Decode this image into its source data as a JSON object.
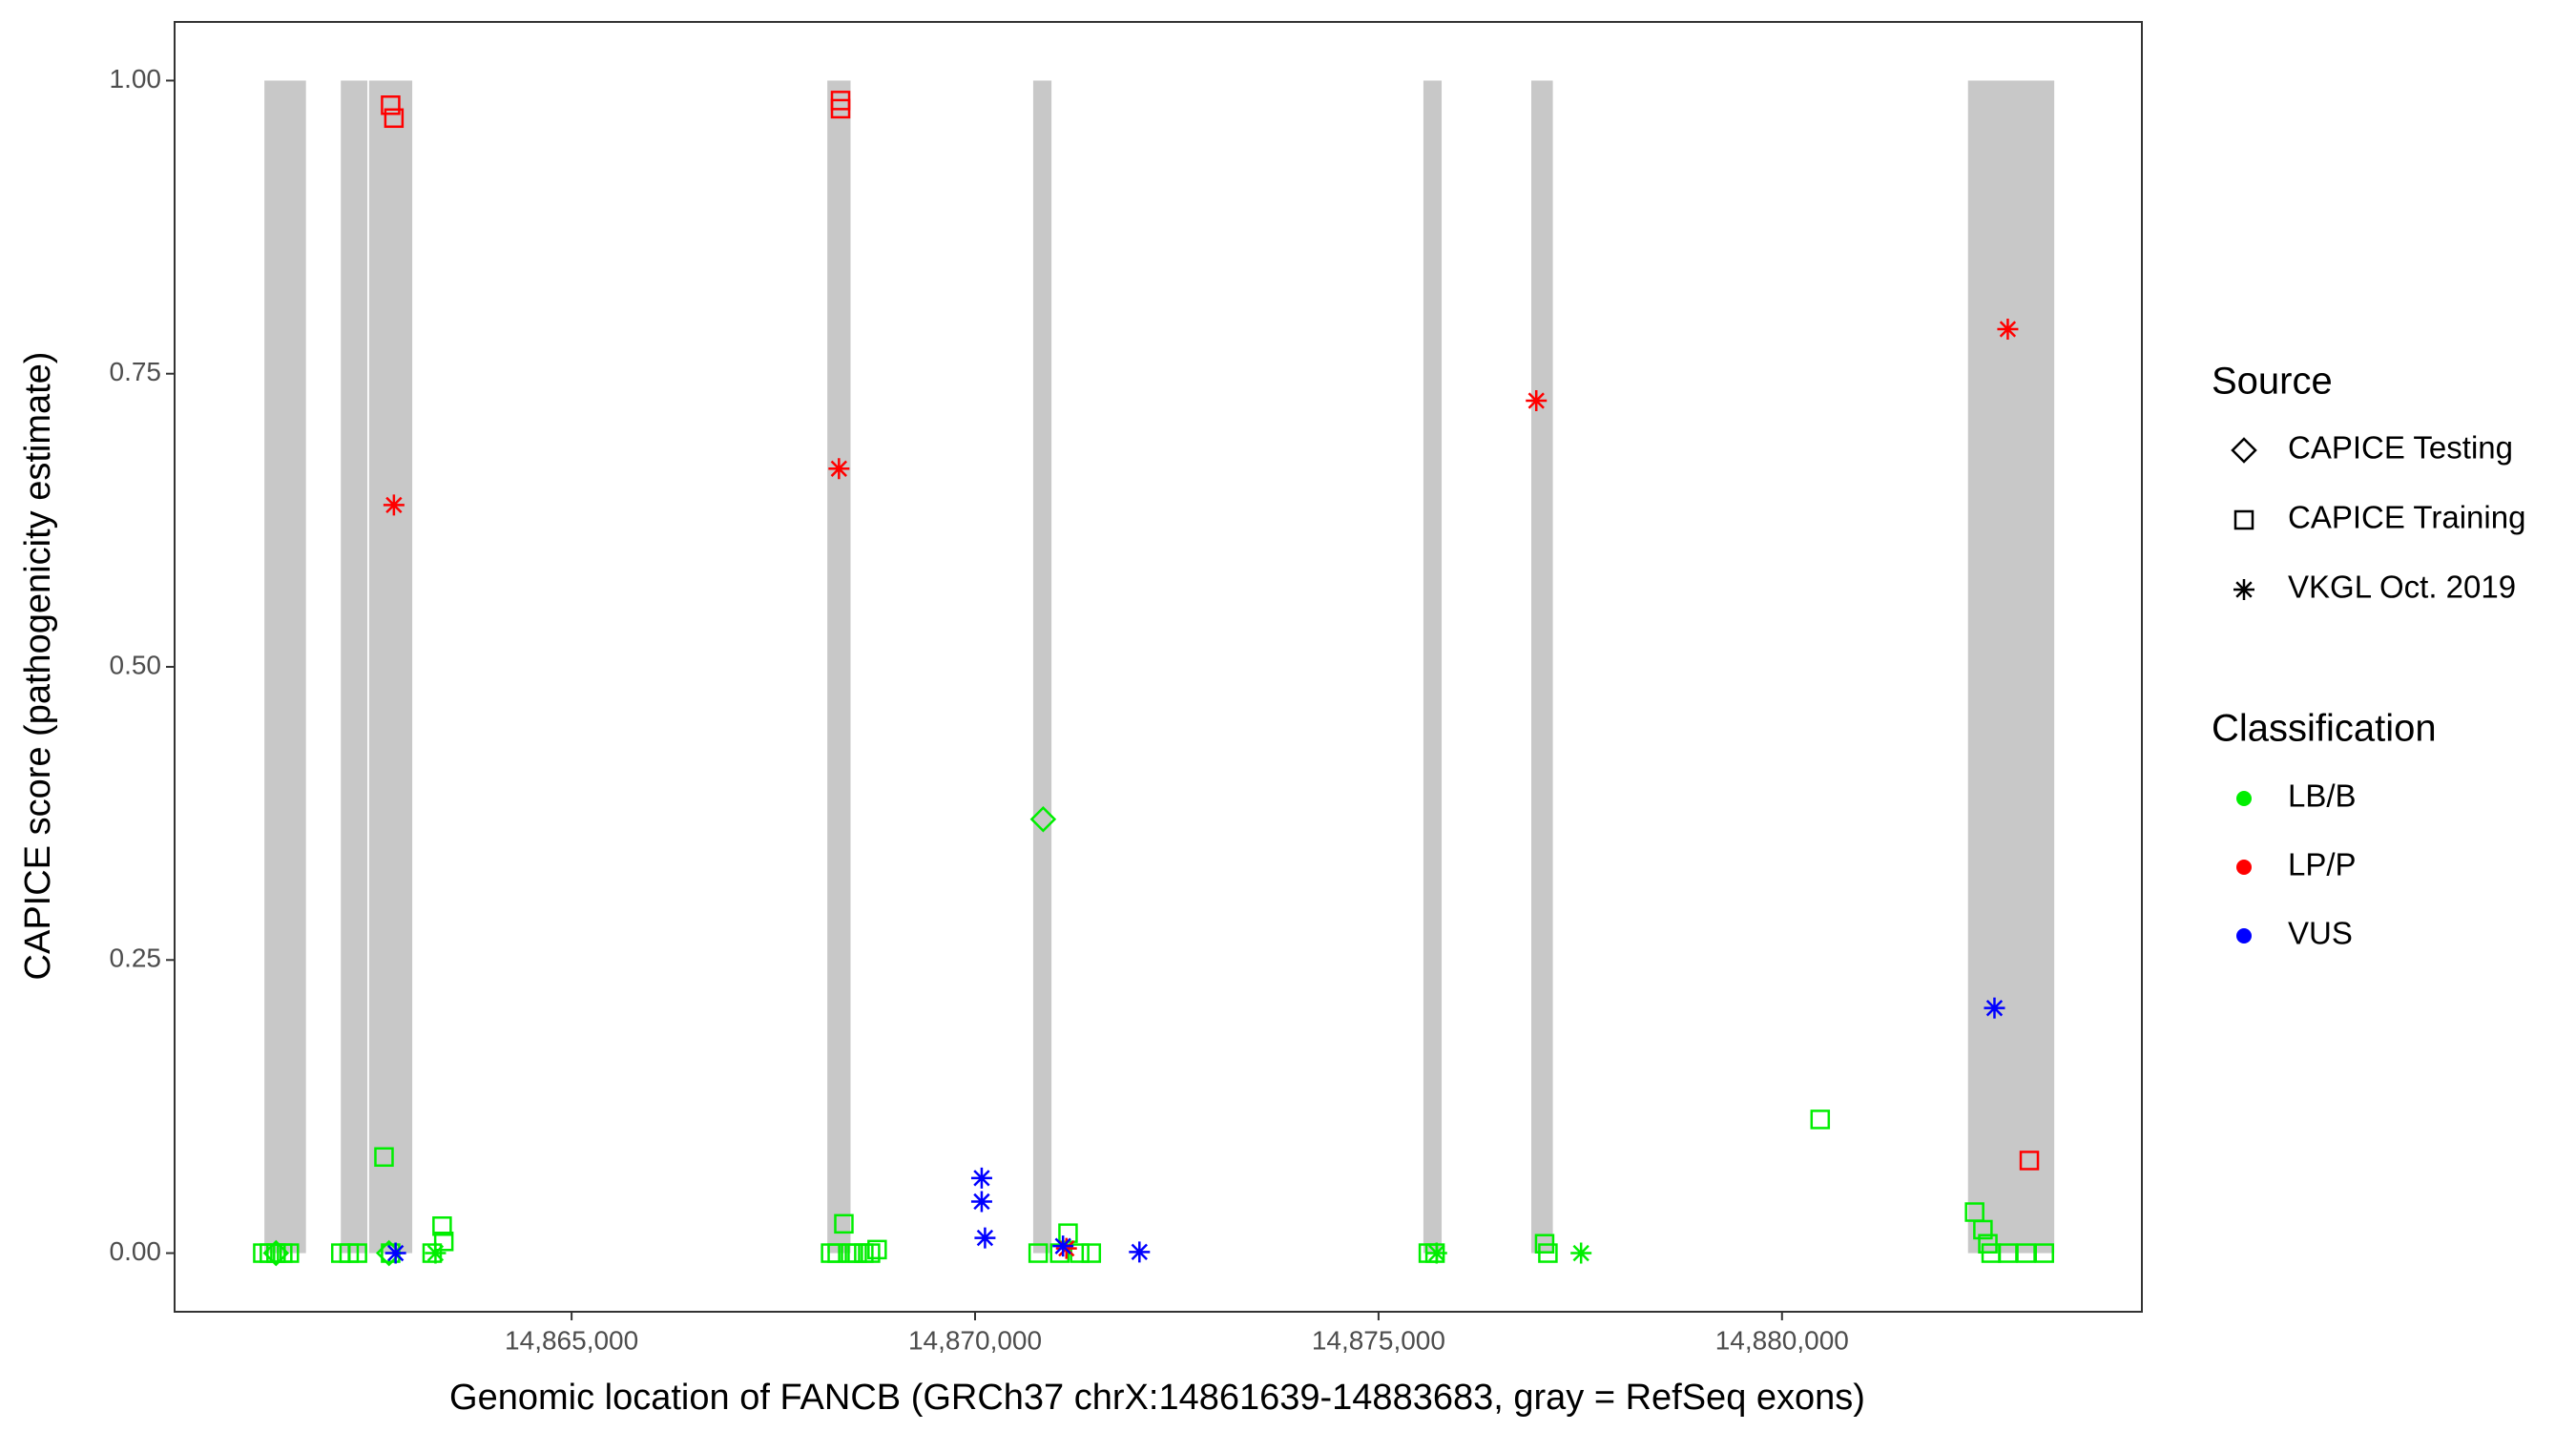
{
  "chart_data": {
    "type": "scatter",
    "xlabel": "Genomic location of FANCB (GRCh37 chrX:14861639-14883683, gray = RefSeq exons)",
    "ylabel": "CAPICE score (pathogenicity estimate)",
    "xlim": [
      14860080,
      14884460
    ],
    "ylim": [
      -0.05,
      1.05
    ],
    "xticks": [
      {
        "value": 14865000,
        "label": "14,865,000"
      },
      {
        "value": 14870000,
        "label": "14,870,000"
      },
      {
        "value": 14875000,
        "label": "14,875,000"
      },
      {
        "value": 14880000,
        "label": "14,880,000"
      }
    ],
    "yticks": [
      {
        "value": 0,
        "label": "0.00"
      },
      {
        "value": 0.25,
        "label": "0.25"
      },
      {
        "value": 0.5,
        "label": "0.50"
      },
      {
        "value": 0.75,
        "label": "0.75"
      },
      {
        "value": 1,
        "label": "1.00"
      }
    ],
    "exon_color": "#c8c8c8",
    "exon_y_range": [
      0,
      1
    ],
    "exons": [
      [
        14861193,
        14861708
      ],
      [
        14862140,
        14862469
      ],
      [
        14862490,
        14863025
      ],
      [
        14868169,
        14868457
      ],
      [
        14870720,
        14870947
      ],
      [
        14875556,
        14875782
      ],
      [
        14876893,
        14877160
      ],
      [
        14882305,
        14883374
      ]
    ],
    "legend_source": {
      "title": "Source",
      "items": [
        {
          "name": "CAPICE Testing",
          "shape": "diamond"
        },
        {
          "name": "CAPICE Training",
          "shape": "square"
        },
        {
          "name": "VKGL Oct. 2019",
          "shape": "asterisk"
        }
      ]
    },
    "legend_classification": {
      "title": "Classification",
      "items": [
        {
          "name": "LB/B",
          "color": "#00ee00"
        },
        {
          "name": "LP/P",
          "color": "#ff0000"
        },
        {
          "name": "VUS",
          "color": "#0000ff"
        }
      ]
    },
    "series": [
      {
        "source": "CAPICE Training",
        "classification": "LB/B",
        "x": [
          14861173,
          14861255,
          14861337,
          14861420,
          14861502,
          14862140,
          14862243,
          14862346,
          14862675,
          14862757,
          14863395,
          14863416,
          14863272,
          14868210,
          14868292,
          14868374,
          14868457,
          14868539,
          14868621,
          14868704,
          14868786,
          14870782,
          14871152,
          14871049,
          14871296,
          14871440,
          14875617,
          14875700,
          14877058,
          14877099,
          14880473,
          14882387,
          14882490,
          14882551,
          14882592,
          14882798,
          14883024,
          14883251
        ],
        "y": [
          0,
          0,
          0,
          0,
          0,
          0,
          0,
          0,
          0.082,
          0,
          0.023,
          0.01,
          0,
          0,
          0,
          0.025,
          0,
          0,
          0,
          0,
          0.003,
          0,
          0.017,
          0,
          0,
          0,
          0,
          0,
          0.008,
          0,
          0.114,
          0.035,
          0.02,
          0.008,
          0,
          0,
          0,
          0
        ]
      },
      {
        "source": "CAPICE Testing",
        "classification": "LB/B",
        "x": [
          14870844,
          14861337,
          14862737
        ],
        "y": [
          0.37,
          0,
          0
        ]
      },
      {
        "source": "VKGL Oct. 2019",
        "classification": "LB/B",
        "x": [
          14863313,
          14875720,
          14877510
        ],
        "y": [
          0,
          0,
          0
        ]
      },
      {
        "source": "CAPICE Training",
        "classification": "LP/P",
        "x": [
          14862757,
          14862798,
          14868333,
          14868333,
          14883065
        ],
        "y": [
          0.979,
          0.968,
          0.983,
          0.976,
          0.079
        ]
      },
      {
        "source": "VKGL Oct. 2019",
        "classification": "LP/P",
        "x": [
          14862798,
          14868313,
          14876955,
          14882798,
          14871132
        ],
        "y": [
          0.638,
          0.669,
          0.727,
          0.788,
          0.004
        ]
      },
      {
        "source": "VKGL Oct. 2019",
        "classification": "VUS",
        "x": [
          14862819,
          14870082,
          14870082,
          14870123,
          14871090,
          14872037,
          14882633
        ],
        "y": [
          0,
          0.064,
          0.044,
          0.013,
          0.006,
          0.001,
          0.209
        ]
      }
    ]
  }
}
